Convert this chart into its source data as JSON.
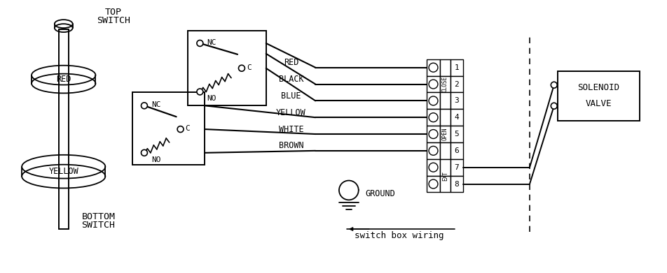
{
  "bg_color": "#ffffff",
  "wire_names": [
    "RED",
    "BLACK",
    "BLUE",
    "YELLOW",
    "WHITE",
    "BROWN"
  ],
  "terminal_numbers": [
    "1",
    "2",
    "3",
    "4",
    "5",
    "6",
    "7",
    "8"
  ],
  "close_label": "CLOSE",
  "open_label": "OPEN",
  "ext_label": "EXT",
  "title": "switch box wiring",
  "font_family": "monospace",
  "top_label": [
    "TOP",
    "SWITCH"
  ],
  "bottom_label": [
    "BOTTOM",
    "SWITCH"
  ],
  "red_label": "RED",
  "yellow_label": "YELLOW",
  "nc_label": "NC",
  "no_label": "NO",
  "c_label": "C",
  "ground_label": "GROUND",
  "solenoid_label": [
    "SOLENOID",
    "VALVE"
  ]
}
